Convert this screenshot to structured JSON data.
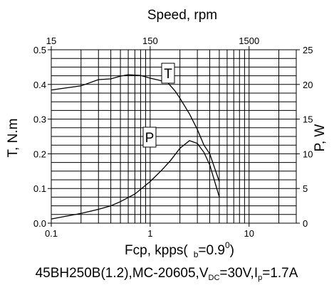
{
  "chart_data": {
    "type": "line",
    "top_title": "Speed, rpm",
    "x_axis": {
      "label_main": "Fcp, kpps(",
      "label_sub_b": "b",
      "label_eq": "=0.9",
      "label_sup": "0",
      "label_close": ")",
      "scale": "log",
      "lim": [
        0.1,
        30
      ],
      "ticks": [
        0.1,
        1,
        10
      ],
      "tick_labels": [
        "0.1",
        "1",
        "10"
      ]
    },
    "top_axis": {
      "scale": "log",
      "ticks": [
        15,
        150,
        1500
      ],
      "tick_labels": [
        "15",
        "150",
        "1500"
      ]
    },
    "y_left": {
      "label": "T, N.m",
      "lim": [
        0,
        0.5
      ],
      "ticks": [
        0.0,
        0.1,
        0.2,
        0.3,
        0.4,
        0.5
      ],
      "tick_labels": [
        "0.0",
        "0.1",
        "0.2",
        "0.3",
        "0.4",
        "0.5"
      ]
    },
    "y_right": {
      "label": "P, W",
      "lim": [
        0,
        25
      ],
      "ticks": [
        0,
        5,
        10,
        15,
        20,
        25
      ],
      "tick_labels": [
        "0",
        "5",
        "10",
        "15",
        "20",
        "25"
      ]
    },
    "grid": true,
    "series": [
      {
        "name": "T",
        "axis": "left",
        "points": [
          [
            0.1,
            0.384
          ],
          [
            0.2,
            0.396
          ],
          [
            0.3,
            0.414
          ],
          [
            0.4,
            0.416
          ],
          [
            0.5,
            0.424
          ],
          [
            0.6,
            0.428
          ],
          [
            0.8,
            0.426
          ],
          [
            1.0,
            0.418
          ],
          [
            1.2,
            0.413
          ],
          [
            1.5,
            0.406
          ],
          [
            1.8,
            0.38
          ],
          [
            2.0,
            0.36
          ],
          [
            2.5,
            0.315
          ],
          [
            3.0,
            0.27
          ],
          [
            3.5,
            0.225
          ],
          [
            4.0,
            0.2
          ],
          [
            5.0,
            0.12
          ]
        ]
      },
      {
        "name": "P",
        "axis": "right",
        "points": [
          [
            0.1,
            0.6
          ],
          [
            0.2,
            1.4
          ],
          [
            0.3,
            2.0
          ],
          [
            0.4,
            2.5
          ],
          [
            0.5,
            3.1
          ],
          [
            0.7,
            4.2
          ],
          [
            1.0,
            6.0
          ],
          [
            1.3,
            7.6
          ],
          [
            1.6,
            9.0
          ],
          [
            2.0,
            10.8
          ],
          [
            2.5,
            11.9
          ],
          [
            3.0,
            11.5
          ],
          [
            3.5,
            10.2
          ],
          [
            4.0,
            8.4
          ],
          [
            5.0,
            3.8
          ]
        ]
      }
    ]
  },
  "caption": {
    "part1": "45BH250B(1.2),MC-20605,V",
    "sub_dc": "DC",
    "part2": "=30V,I",
    "sub_p": "p",
    "part3": "=1.7A"
  }
}
